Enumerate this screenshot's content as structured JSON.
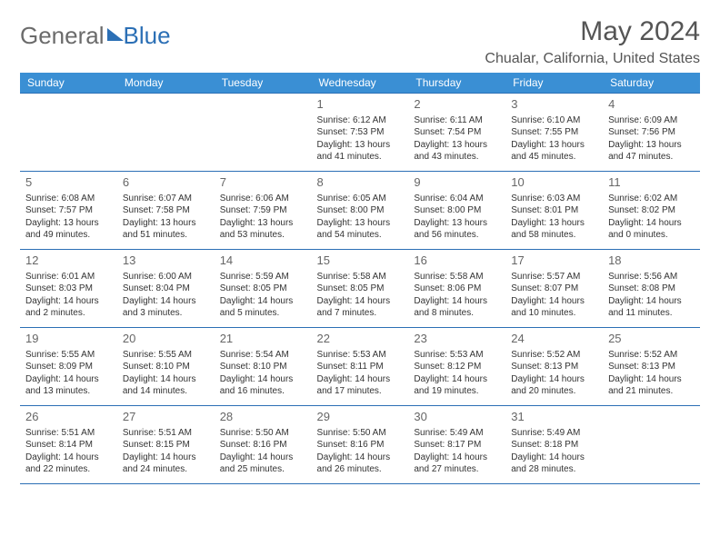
{
  "logo": {
    "text1": "General",
    "text2": "Blue"
  },
  "title": "May 2024",
  "location": "Chualar, California, United States",
  "colors": {
    "header_bg": "#3a8fd4",
    "border": "#2b6fb5",
    "logo_gray": "#6b6b6b",
    "logo_blue": "#2b6fb5",
    "text": "#333333",
    "title_gray": "#555555"
  },
  "weekdays": [
    "Sunday",
    "Monday",
    "Tuesday",
    "Wednesday",
    "Thursday",
    "Friday",
    "Saturday"
  ],
  "weeks": [
    [
      null,
      null,
      null,
      {
        "n": "1",
        "sr": "6:12 AM",
        "ss": "7:53 PM",
        "dl": "13 hours and 41 minutes."
      },
      {
        "n": "2",
        "sr": "6:11 AM",
        "ss": "7:54 PM",
        "dl": "13 hours and 43 minutes."
      },
      {
        "n": "3",
        "sr": "6:10 AM",
        "ss": "7:55 PM",
        "dl": "13 hours and 45 minutes."
      },
      {
        "n": "4",
        "sr": "6:09 AM",
        "ss": "7:56 PM",
        "dl": "13 hours and 47 minutes."
      }
    ],
    [
      {
        "n": "5",
        "sr": "6:08 AM",
        "ss": "7:57 PM",
        "dl": "13 hours and 49 minutes."
      },
      {
        "n": "6",
        "sr": "6:07 AM",
        "ss": "7:58 PM",
        "dl": "13 hours and 51 minutes."
      },
      {
        "n": "7",
        "sr": "6:06 AM",
        "ss": "7:59 PM",
        "dl": "13 hours and 53 minutes."
      },
      {
        "n": "8",
        "sr": "6:05 AM",
        "ss": "8:00 PM",
        "dl": "13 hours and 54 minutes."
      },
      {
        "n": "9",
        "sr": "6:04 AM",
        "ss": "8:00 PM",
        "dl": "13 hours and 56 minutes."
      },
      {
        "n": "10",
        "sr": "6:03 AM",
        "ss": "8:01 PM",
        "dl": "13 hours and 58 minutes."
      },
      {
        "n": "11",
        "sr": "6:02 AM",
        "ss": "8:02 PM",
        "dl": "14 hours and 0 minutes."
      }
    ],
    [
      {
        "n": "12",
        "sr": "6:01 AM",
        "ss": "8:03 PM",
        "dl": "14 hours and 2 minutes."
      },
      {
        "n": "13",
        "sr": "6:00 AM",
        "ss": "8:04 PM",
        "dl": "14 hours and 3 minutes."
      },
      {
        "n": "14",
        "sr": "5:59 AM",
        "ss": "8:05 PM",
        "dl": "14 hours and 5 minutes."
      },
      {
        "n": "15",
        "sr": "5:58 AM",
        "ss": "8:05 PM",
        "dl": "14 hours and 7 minutes."
      },
      {
        "n": "16",
        "sr": "5:58 AM",
        "ss": "8:06 PM",
        "dl": "14 hours and 8 minutes."
      },
      {
        "n": "17",
        "sr": "5:57 AM",
        "ss": "8:07 PM",
        "dl": "14 hours and 10 minutes."
      },
      {
        "n": "18",
        "sr": "5:56 AM",
        "ss": "8:08 PM",
        "dl": "14 hours and 11 minutes."
      }
    ],
    [
      {
        "n": "19",
        "sr": "5:55 AM",
        "ss": "8:09 PM",
        "dl": "14 hours and 13 minutes."
      },
      {
        "n": "20",
        "sr": "5:55 AM",
        "ss": "8:10 PM",
        "dl": "14 hours and 14 minutes."
      },
      {
        "n": "21",
        "sr": "5:54 AM",
        "ss": "8:10 PM",
        "dl": "14 hours and 16 minutes."
      },
      {
        "n": "22",
        "sr": "5:53 AM",
        "ss": "8:11 PM",
        "dl": "14 hours and 17 minutes."
      },
      {
        "n": "23",
        "sr": "5:53 AM",
        "ss": "8:12 PM",
        "dl": "14 hours and 19 minutes."
      },
      {
        "n": "24",
        "sr": "5:52 AM",
        "ss": "8:13 PM",
        "dl": "14 hours and 20 minutes."
      },
      {
        "n": "25",
        "sr": "5:52 AM",
        "ss": "8:13 PM",
        "dl": "14 hours and 21 minutes."
      }
    ],
    [
      {
        "n": "26",
        "sr": "5:51 AM",
        "ss": "8:14 PM",
        "dl": "14 hours and 22 minutes."
      },
      {
        "n": "27",
        "sr": "5:51 AM",
        "ss": "8:15 PM",
        "dl": "14 hours and 24 minutes."
      },
      {
        "n": "28",
        "sr": "5:50 AM",
        "ss": "8:16 PM",
        "dl": "14 hours and 25 minutes."
      },
      {
        "n": "29",
        "sr": "5:50 AM",
        "ss": "8:16 PM",
        "dl": "14 hours and 26 minutes."
      },
      {
        "n": "30",
        "sr": "5:49 AM",
        "ss": "8:17 PM",
        "dl": "14 hours and 27 minutes."
      },
      {
        "n": "31",
        "sr": "5:49 AM",
        "ss": "8:18 PM",
        "dl": "14 hours and 28 minutes."
      },
      null
    ]
  ],
  "labels": {
    "sunrise": "Sunrise:",
    "sunset": "Sunset:",
    "daylight": "Daylight:"
  }
}
